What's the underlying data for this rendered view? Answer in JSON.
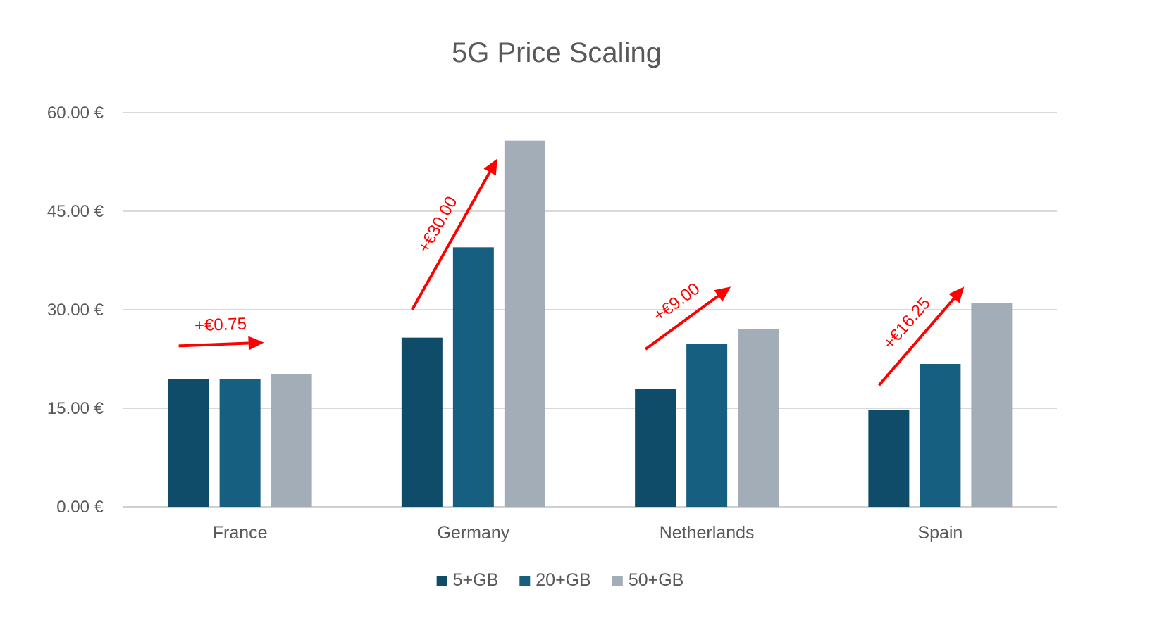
{
  "chart_data": {
    "type": "bar",
    "title": "5G Price Scaling",
    "xlabel": "",
    "ylabel": "",
    "categories": [
      "France",
      "Germany",
      "Netherlands",
      "Spain"
    ],
    "series": [
      {
        "name": "5+GB",
        "color": "#0f4c69",
        "values": [
          19.5,
          25.75,
          18.0,
          14.75
        ]
      },
      {
        "name": "20+GB",
        "color": "#175f81",
        "values": [
          19.5,
          39.5,
          24.75,
          21.75
        ]
      },
      {
        "name": "50+GB",
        "color": "#a2adb8",
        "values": [
          20.25,
          55.75,
          27.0,
          31.0
        ]
      }
    ],
    "ylim": [
      0,
      60
    ],
    "yticks": [
      0,
      15,
      30,
      45,
      60
    ],
    "ytick_labels": [
      "0.00 €",
      "15.00 €",
      "30.00 €",
      "45.00 €",
      "60.00 €"
    ],
    "grid": true,
    "legend": "bottom-center",
    "annotations": [
      {
        "category": "France",
        "text": "+€0.75",
        "from_value": 24.5,
        "to_value": 25.0
      },
      {
        "category": "Germany",
        "text": "+€30.00",
        "from_value": 30.0,
        "to_value": 53.0
      },
      {
        "category": "Netherlands",
        "text": "+€9.00",
        "from_value": 24.0,
        "to_value": 33.5
      },
      {
        "category": "Spain",
        "text": "+€16.25",
        "from_value": 18.5,
        "to_value": 33.5
      }
    ]
  }
}
